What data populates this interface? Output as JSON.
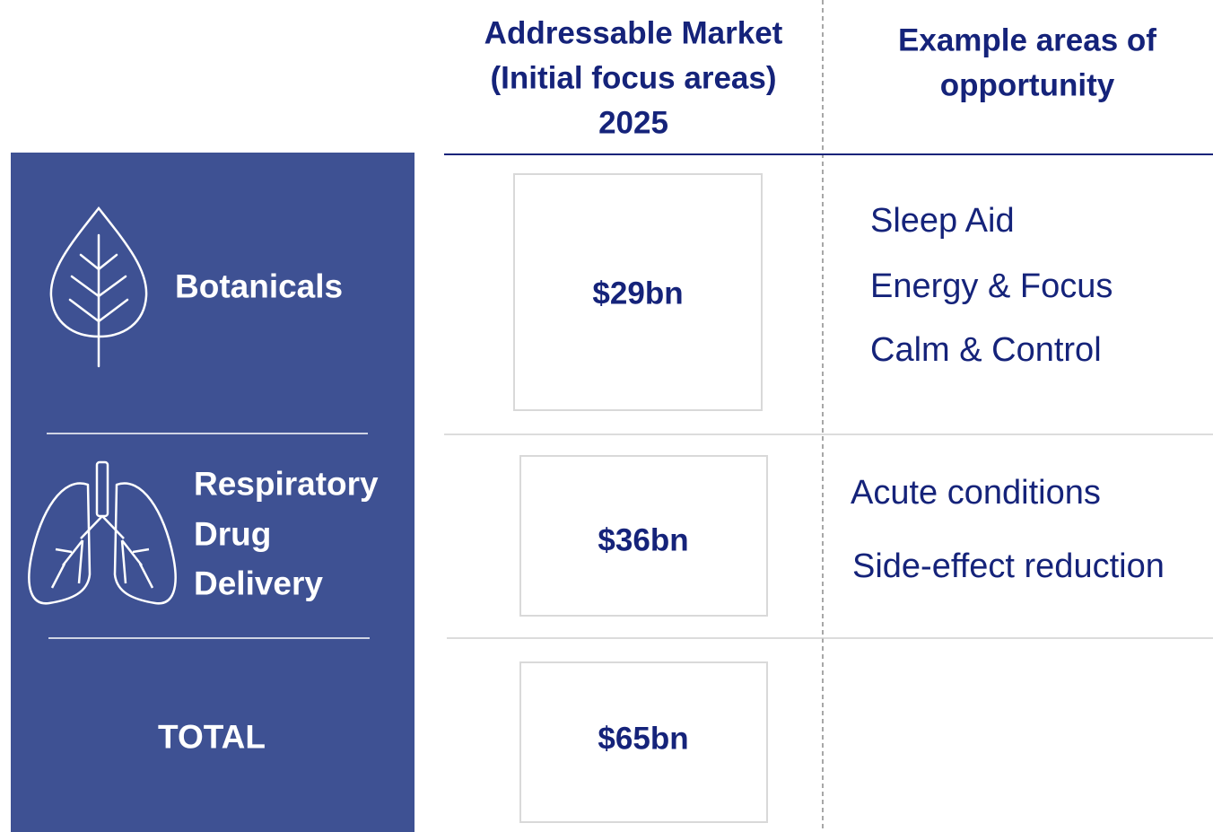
{
  "header": {
    "market": [
      "Addressable Market",
      "(Initial focus areas)",
      "2025"
    ],
    "opportunities": [
      "Example areas of",
      "opportunity"
    ]
  },
  "rows": [
    {
      "label": [
        "Botanicals"
      ],
      "market": "$29bn",
      "opportunities": [
        "Sleep Aid",
        "Energy & Focus",
        "Calm & Control"
      ]
    },
    {
      "label": [
        "Respiratory",
        "Drug",
        "Delivery"
      ],
      "market": "$36bn",
      "opportunities": [
        "Acute conditions",
        "Side-effect reduction"
      ]
    },
    {
      "label": [
        "TOTAL"
      ],
      "market": "$65bn",
      "opportunities": []
    }
  ]
}
